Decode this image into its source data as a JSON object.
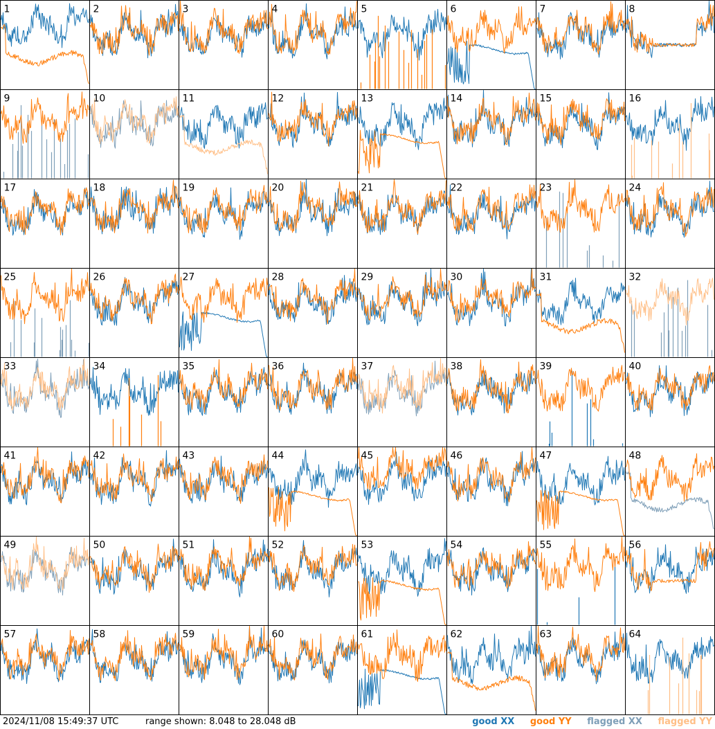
{
  "timestamp": "2024/11/08 15:49:37 UTC",
  "range_label": "range shown: 8.048 to 28.048 dB",
  "colors": {
    "good_xx": "#1f77b4",
    "good_yy": "#ff7f0e",
    "flagged_xx": "#7f9fb8",
    "flagged_yy": "#ffbf87"
  },
  "legend": [
    {
      "key": "good_xx",
      "prefix": "good",
      "suffix": "XX"
    },
    {
      "key": "good_yy",
      "prefix": "good",
      "suffix": "YY"
    },
    {
      "key": "flagged_xx",
      "prefix": "flagged",
      "suffix": "XX"
    },
    {
      "key": "flagged_yy",
      "prefix": "flagged",
      "suffix": "YY"
    }
  ],
  "chart_data": {
    "type": "line",
    "grid": {
      "rows": 8,
      "cols": 8
    },
    "ylim": [
      8.048,
      28.048
    ],
    "panel_labels": [
      "1",
      "2",
      "3",
      "4",
      "5",
      "6",
      "7",
      "8",
      "9",
      "10",
      "11",
      "12",
      "13",
      "14",
      "15",
      "16",
      "17",
      "18",
      "19",
      "20",
      "21",
      "22",
      "23",
      "24",
      "25",
      "26",
      "27",
      "28",
      "29",
      "30",
      "31",
      "32",
      "33",
      "34",
      "35",
      "36",
      "37",
      "38",
      "39",
      "40",
      "41",
      "42",
      "43",
      "44",
      "45",
      "46",
      "47",
      "48",
      "49",
      "50",
      "51",
      "52",
      "53",
      "54",
      "55",
      "56",
      "57",
      "58",
      "59",
      "60",
      "61",
      "62",
      "63",
      "64"
    ],
    "panel_states": {
      "1": {
        "xx": "good",
        "xx_shape": "higher",
        "yy": "good",
        "yy_shape": "droop"
      },
      "5": {
        "xx": "good",
        "yy": "good",
        "yy_shape": "spikes"
      },
      "6": {
        "xx": "good",
        "xx_shape": "decay",
        "yy": "good"
      },
      "8": {
        "xx": "good",
        "xx_shape": "flat",
        "yy": "good",
        "yy_shape": "flat"
      },
      "9": {
        "xx": "flagged",
        "xx_shape": "spikes",
        "yy": "good"
      },
      "10": {
        "xx": "flagged",
        "yy": "flagged"
      },
      "11": {
        "xx": "good",
        "yy": "flagged",
        "yy_shape": "droop"
      },
      "13": {
        "xx": "good",
        "yy": "good",
        "yy_shape": "decay"
      },
      "16": {
        "xx": "good",
        "yy": "flagged",
        "yy_shape": "spikes"
      },
      "23": {
        "xx": "flagged",
        "xx_shape": "spikes",
        "yy": "good"
      },
      "25": {
        "xx": "flagged",
        "xx_shape": "spikes",
        "yy": "good"
      },
      "27": {
        "xx": "good",
        "xx_shape": "decay",
        "yy": "good"
      },
      "31": {
        "xx": "good",
        "yy": "good",
        "yy_shape": "droop"
      },
      "32": {
        "xx": "flagged",
        "xx_shape": "spikes",
        "yy": "flagged"
      },
      "33": {
        "xx": "flagged",
        "yy": "flagged"
      },
      "34": {
        "xx": "good",
        "yy": "good",
        "yy_shape": "spikes"
      },
      "37": {
        "xx": "flagged",
        "yy": "flagged"
      },
      "39": {
        "xx": "good",
        "xx_shape": "spikes",
        "yy": "good"
      },
      "44": {
        "xx": "good",
        "yy": "good",
        "yy_shape": "decay"
      },
      "45": {
        "xx": "good",
        "yy": "good",
        "yy_shape": "higher"
      },
      "47": {
        "xx": "good",
        "yy": "good",
        "yy_shape": "decay"
      },
      "48": {
        "xx": "flagged",
        "xx_shape": "droop",
        "yy": "good"
      },
      "49": {
        "xx": "flagged",
        "yy": "flagged"
      },
      "53": {
        "xx": "good",
        "yy": "good",
        "yy_shape": "decay"
      },
      "55": {
        "xx": "good",
        "xx_shape": "spikes",
        "yy": "good"
      },
      "56": {
        "xx": "good",
        "yy": "good",
        "yy_shape": "flat"
      },
      "61": {
        "xx": "good",
        "xx_shape": "decay",
        "yy": "good"
      },
      "62": {
        "xx": "good",
        "yy": "good",
        "yy_shape": "droop"
      },
      "64": {
        "xx": "good",
        "yy": "flagged",
        "yy_shape": "spikes"
      }
    }
  }
}
